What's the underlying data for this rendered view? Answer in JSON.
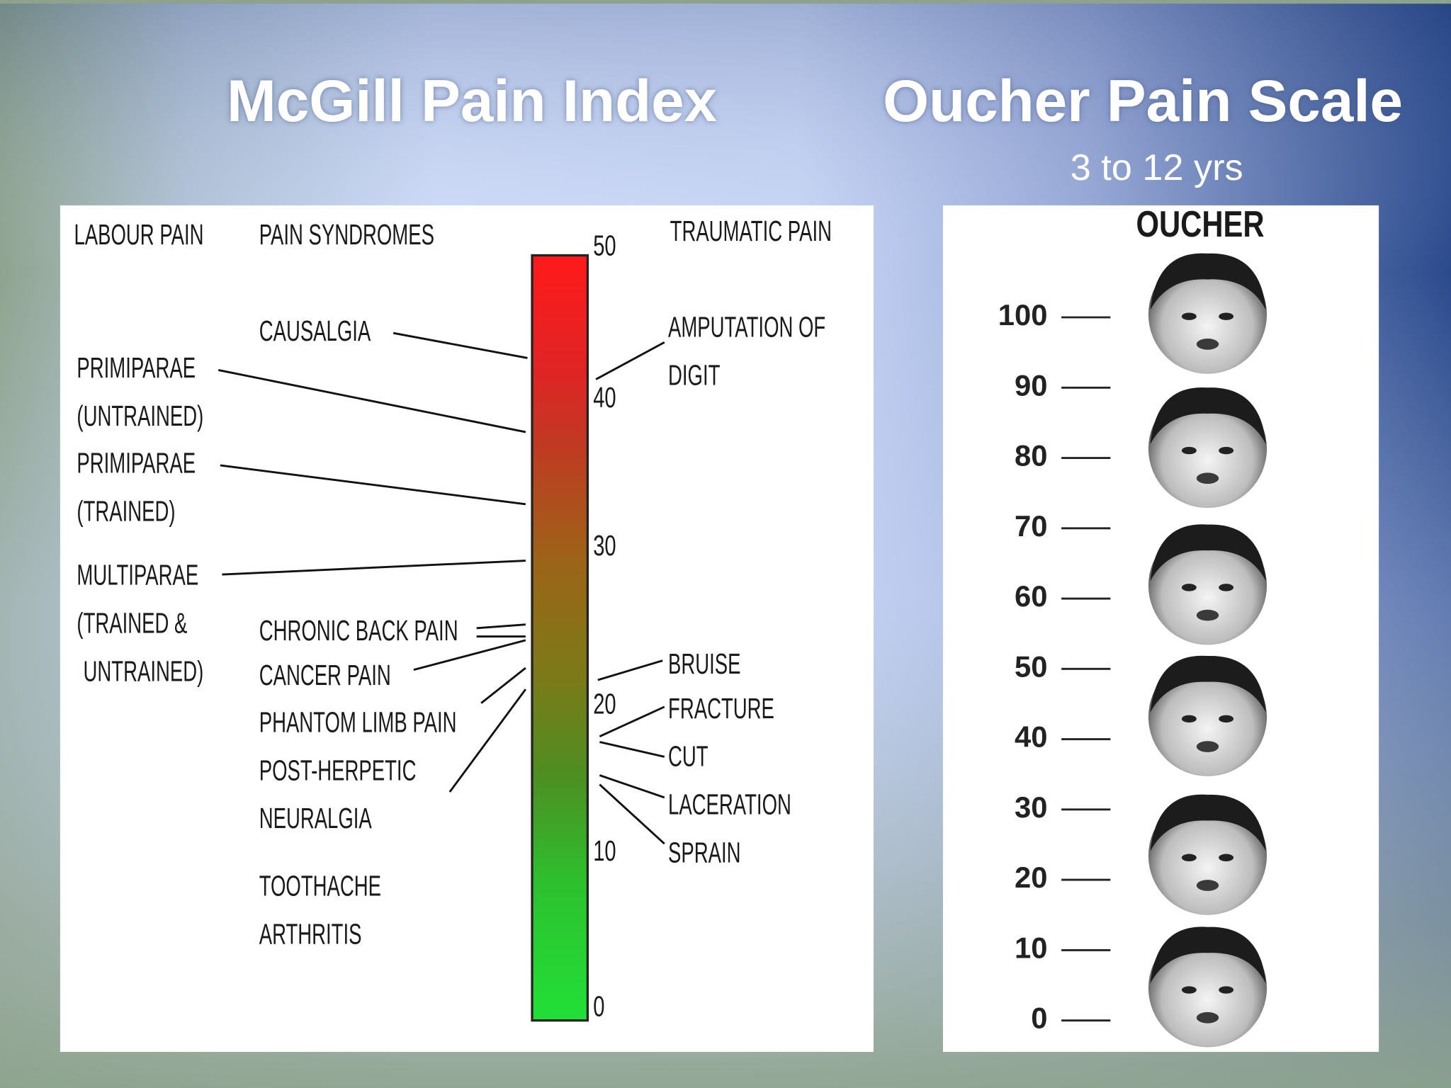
{
  "titles": {
    "left": "McGill Pain Index",
    "right": "Oucher Pain Scale",
    "right_subtitle": "3 to 12 yrs"
  },
  "mcgill": {
    "headings": [
      "LABOUR PAIN",
      "PAIN SYNDROMES",
      "TRAUMATIC PAIN"
    ],
    "scale": [
      50,
      40,
      30,
      20,
      10,
      0
    ],
    "labels": [
      "CAUSALGIA",
      "PRIMIPARAE",
      "(UNTRAINED)",
      "PRIMIPARAE",
      "(TRAINED)",
      "MULTIPARAE",
      "(TRAINED &",
      "UNTRAINED)",
      "CHRONIC BACK PAIN",
      "CANCER PAIN",
      "PHANTOM LIMB PAIN",
      "POST-HERPETIC",
      "NEURALGIA",
      "TOOTHACHE",
      "ARTHRITIS",
      "AMPUTATION OF",
      "DIGIT",
      "BRUISE",
      "FRACTURE",
      "CUT",
      "LACERATION",
      "SPRAIN"
    ]
  },
  "oucher": {
    "title": "OUCHER",
    "ticks": [
      100,
      90,
      80,
      70,
      60,
      50,
      40,
      30,
      20,
      10,
      0
    ]
  }
}
